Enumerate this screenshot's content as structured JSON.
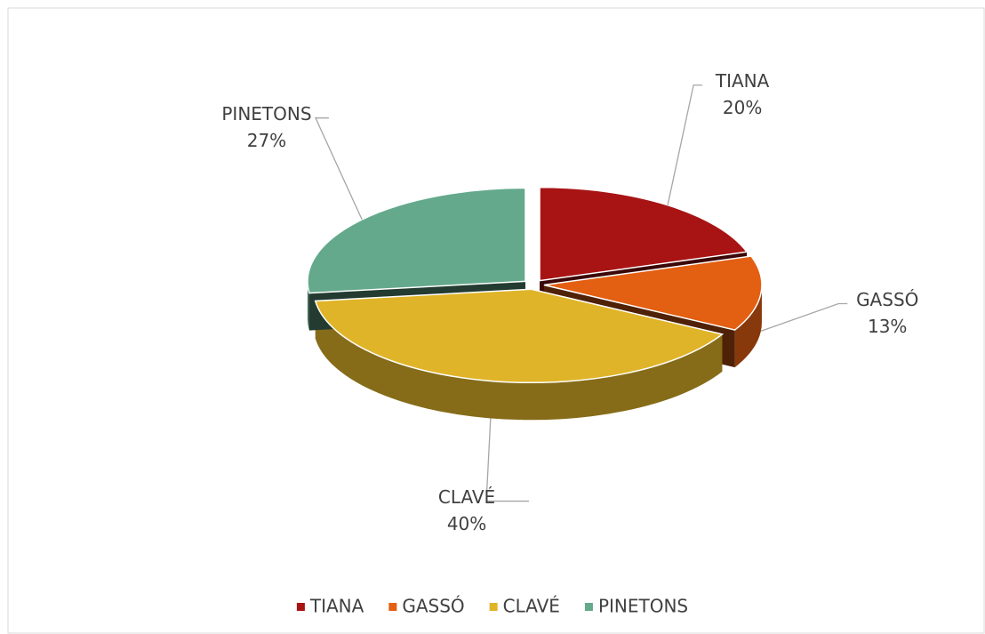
{
  "chart_data": {
    "type": "pie",
    "categories": [
      "TIANA",
      "GASSÓ",
      "CLAVÉ",
      "PINETONS"
    ],
    "values": [
      20,
      13,
      40,
      27
    ],
    "value_labels": [
      "20%",
      "13%",
      "40%",
      "27%"
    ],
    "colors": [
      "#a81414",
      "#e35f12",
      "#e0b429",
      "#64a98c"
    ],
    "legend": "bottom"
  }
}
